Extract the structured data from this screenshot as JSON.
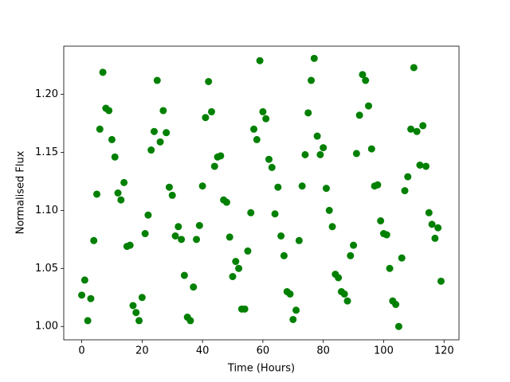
{
  "chart_data": {
    "type": "scatter",
    "xlabel": "Time (Hours)",
    "ylabel": "Normalised Flux",
    "series": [
      {
        "color": "#008000",
        "x": [
          0,
          1,
          2,
          3,
          4,
          5,
          6,
          7,
          8,
          9,
          10,
          11,
          12,
          13,
          14,
          15,
          16,
          17,
          18,
          19,
          20,
          21,
          22,
          23,
          24,
          25,
          26,
          27,
          28,
          29,
          30,
          31,
          32,
          33,
          34,
          35,
          36,
          37,
          38,
          39,
          40,
          41,
          42,
          43,
          44,
          45,
          46,
          47,
          48,
          49,
          50,
          51,
          52,
          53,
          54,
          55,
          56,
          57,
          58,
          59,
          60,
          61,
          62,
          63,
          64,
          65,
          66,
          67,
          68,
          69,
          70,
          71,
          72,
          73,
          74,
          75,
          76,
          77,
          78,
          79,
          80,
          81,
          82,
          83,
          84,
          85,
          86,
          87,
          88,
          89,
          90,
          91,
          92,
          93,
          94,
          95,
          96,
          97,
          98,
          99,
          100,
          101,
          102,
          103,
          104,
          105,
          106,
          107,
          108,
          109,
          110,
          111,
          112,
          113,
          114,
          115,
          116,
          117,
          118,
          119
        ],
        "values": [
          1.027,
          1.04,
          1.005,
          1.024,
          1.074,
          1.114,
          1.17,
          1.219,
          1.188,
          1.186,
          1.161,
          1.146,
          1.115,
          1.109,
          1.124,
          1.069,
          1.07,
          1.018,
          1.012,
          1.005,
          1.025,
          1.08,
          1.096,
          1.152,
          1.168,
          1.212,
          1.159,
          1.186,
          1.167,
          1.12,
          1.113,
          1.078,
          1.086,
          1.075,
          1.044,
          1.008,
          1.005,
          1.034,
          1.075,
          1.087,
          1.121,
          1.18,
          1.211,
          1.185,
          1.138,
          1.146,
          1.147,
          1.109,
          1.107,
          1.077,
          1.043,
          1.056,
          1.05,
          1.015,
          1.015,
          1.065,
          1.098,
          1.17,
          1.161,
          1.229,
          1.185,
          1.179,
          1.144,
          1.137,
          1.097,
          1.12,
          1.078,
          1.061,
          1.03,
          1.028,
          1.006,
          1.014,
          1.074,
          1.121,
          1.148,
          1.184,
          1.212,
          1.231,
          1.164,
          1.148,
          1.154,
          1.119,
          1.1,
          1.086,
          1.045,
          1.042,
          1.03,
          1.028,
          1.022,
          1.061,
          1.07,
          1.149,
          1.182,
          1.217,
          1.212,
          1.19,
          1.153,
          1.121,
          1.122,
          1.091,
          1.08,
          1.079,
          1.05,
          1.022,
          1.019,
          1.0,
          1.059,
          1.117,
          1.129,
          1.17,
          1.223,
          1.168,
          1.139,
          1.173,
          1.138,
          1.098,
          1.088,
          1.076,
          1.085,
          1.039
        ]
      }
    ],
    "xlim": [
      -5.95,
      124.95
    ],
    "xticks": [
      0,
      20,
      40,
      60,
      80,
      100,
      120
    ],
    "ylim": [
      0.9885,
      1.2415
    ],
    "yticks": [
      {
        "value": 1,
        "label": "1.00"
      },
      1.05,
      {
        "value": 1.1,
        "label": "1.10"
      },
      1.15,
      {
        "value": 1.2,
        "label": "1.20"
      }
    ]
  }
}
